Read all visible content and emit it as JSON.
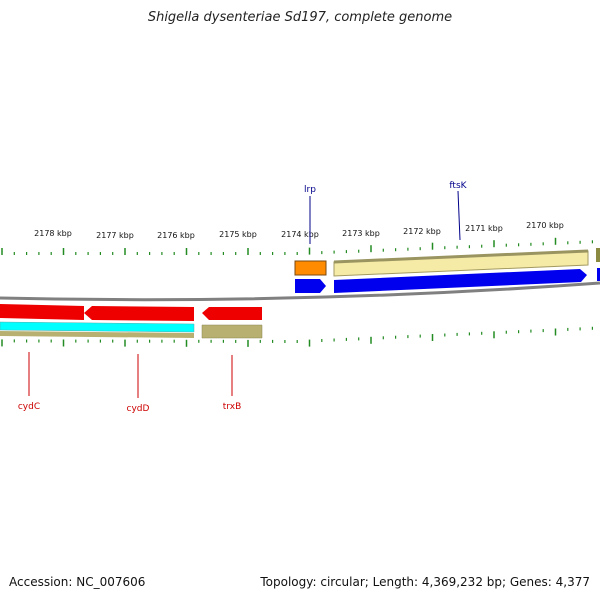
{
  "title": "Shigella dysenteriae Sd197, complete genome",
  "footer": {
    "accession": "Accession: NC_007606",
    "topology": "Topology: circular; Length: 4,369,232 bp; Genes: 4,377"
  },
  "scale_labels": [
    "2178 kbp",
    "2177 kbp",
    "2176 kbp",
    "2175 kbp",
    "2174 kbp",
    "2173 kbp",
    "2172 kbp",
    "2171 kbp",
    "2170 kbp"
  ],
  "forward_genes": [
    "lrp",
    "ftsK"
  ],
  "reverse_genes": [
    "cydC",
    "cydD",
    "trxB"
  ],
  "colors": {
    "forward_label": "#00008b",
    "reverse_label": "#cc0000",
    "backbone": "#808080",
    "forward_cds": "#0000ee",
    "reverse_cds": "#ee0000",
    "orange_feature": "#ff8c00",
    "khaki_feature": "#f0e68c",
    "olive_feature": "#a09a60",
    "cyan_feature": "#00ffff",
    "tick": "#228b22"
  }
}
